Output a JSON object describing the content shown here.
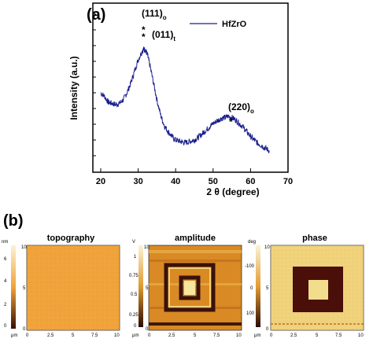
{
  "panel_a": {
    "label": "(a)",
    "legend": "HfZrO",
    "ylabel": "Intensity (a.u.)",
    "xlabel": "2 θ (degree)",
    "xticks": [
      "20",
      "30",
      "40",
      "50",
      "60",
      "70"
    ],
    "annotations": [
      {
        "text": "(111)",
        "sub": "o"
      },
      {
        "text": "(011)",
        "sub": "t"
      },
      {
        "text": "(220)",
        "sub": "o"
      }
    ],
    "star": "*"
  },
  "panel_b": {
    "label": "(b)",
    "maps": [
      {
        "title": "topography",
        "unit": "nm",
        "scale_ticks": [
          "6",
          "4",
          "2",
          "0"
        ],
        "x_unit": "μm",
        "y_unit": "μm",
        "xticks": [
          "0",
          "2.5",
          "5",
          "7.5",
          "10"
        ],
        "yticks": [
          "10",
          "5",
          "0"
        ]
      },
      {
        "title": "amplitude",
        "unit": "V",
        "scale_ticks": [
          "1",
          "0.75",
          "0.5",
          "0.25",
          "0"
        ],
        "x_unit": "μm",
        "y_unit": "μm",
        "xticks": [
          "0",
          "2.5",
          "5",
          "7.5",
          "10"
        ],
        "yticks": [
          "10",
          "5",
          "0"
        ]
      },
      {
        "title": "phase",
        "unit": "deg",
        "scale_ticks": [
          "-100",
          "0",
          "100"
        ],
        "x_unit": "μm",
        "y_unit": "μm",
        "xticks": [
          "0",
          "2.5",
          "5",
          "7.5",
          "10"
        ],
        "yticks": [
          "10",
          "5",
          "0"
        ]
      }
    ]
  },
  "colors": {
    "series": "#1a1f8c",
    "axis": "#000000"
  },
  "chart_data": [
    {
      "type": "line",
      "title": "",
      "xlabel": "2 θ (degree)",
      "ylabel": "Intensity (a.u.)",
      "xlim": [
        20,
        70
      ],
      "legend": "top-right",
      "series": [
        {
          "name": "HfZrO",
          "x": [
            20,
            21,
            22,
            23,
            24,
            25,
            26,
            27,
            28,
            29,
            30,
            31,
            31.5,
            32,
            32.5,
            33,
            34,
            35,
            36,
            37,
            38,
            39,
            40,
            41,
            42,
            43,
            44,
            45,
            46,
            47,
            48,
            49,
            50,
            51,
            52,
            53,
            54,
            55,
            56,
            57,
            58,
            59,
            60,
            61,
            62,
            63,
            64,
            65
          ],
          "y": [
            0.52,
            0.49,
            0.44,
            0.43,
            0.42,
            0.43,
            0.46,
            0.52,
            0.6,
            0.7,
            0.8,
            0.87,
            0.89,
            0.88,
            0.84,
            0.77,
            0.62,
            0.46,
            0.33,
            0.24,
            0.19,
            0.15,
            0.12,
            0.11,
            0.1,
            0.1,
            0.11,
            0.12,
            0.14,
            0.17,
            0.2,
            0.23,
            0.26,
            0.28,
            0.3,
            0.31,
            0.32,
            0.31,
            0.29,
            0.26,
            0.23,
            0.19,
            0.15,
            0.12,
            0.09,
            0.07,
            0.05,
            0.03
          ]
        }
      ]
    }
  ]
}
